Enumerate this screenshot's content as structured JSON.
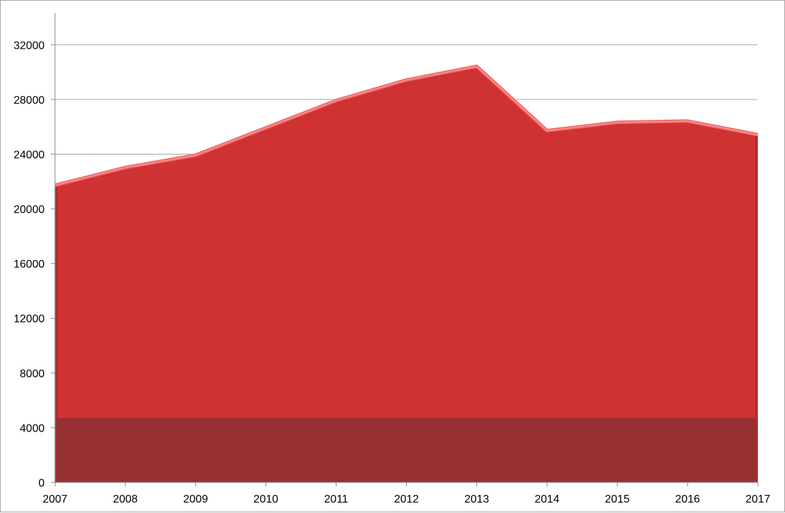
{
  "chart_data": {
    "type": "area",
    "title": "",
    "xlabel": "",
    "ylabel": "",
    "categories": [
      "2007",
      "2008",
      "2009",
      "2010",
      "2011",
      "2012",
      "2013",
      "2014",
      "2015",
      "2016",
      "2017"
    ],
    "series": [
      {
        "values": [
          21800,
          23100,
          24000,
          26000,
          28000,
          29500,
          30500,
          25800,
          26400,
          26500,
          25500
        ],
        "color": "#cf3232",
        "highlight_color": "#f06a6a"
      }
    ],
    "baseline_band": {
      "value": 4700,
      "color": "#962f31"
    },
    "ylim": [
      0,
      34000
    ],
    "yticks": [
      0,
      4000,
      8000,
      12000,
      16000,
      20000,
      24000,
      28000,
      32000
    ],
    "grid": true,
    "legend": "none"
  }
}
